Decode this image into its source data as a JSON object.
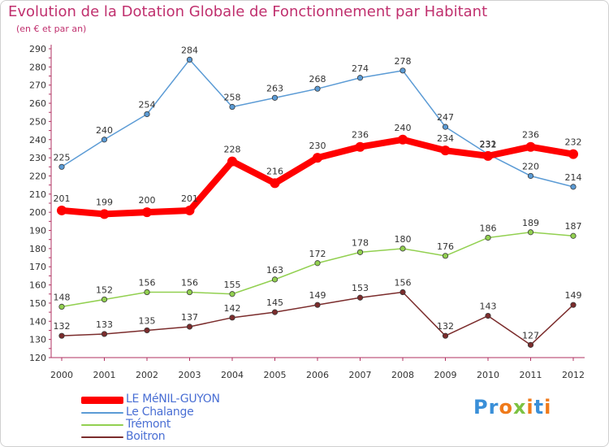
{
  "header": {
    "title": "Evolution de la Dotation Globale de Fonctionnement par Habitant",
    "subtitle": "(en € et par an)"
  },
  "logo": {
    "text": "Proxiti"
  },
  "colors": {
    "title": "#c0306e",
    "axis": "#b03060",
    "legend_text": "#4a6fd4"
  },
  "chart_data": {
    "type": "line",
    "x": [
      "2000",
      "2001",
      "2002",
      "2003",
      "2004",
      "2005",
      "2006",
      "2007",
      "2008",
      "2009",
      "2010",
      "2011",
      "2012"
    ],
    "ylim": [
      120,
      290
    ],
    "yticks": [
      120,
      130,
      140,
      150,
      160,
      170,
      180,
      190,
      200,
      210,
      220,
      230,
      240,
      250,
      260,
      270,
      280,
      290
    ],
    "grid": false,
    "legend_position": "bottom-left",
    "series": [
      {
        "name": "LE MéNIL-GUYON",
        "color": "#ff0000",
        "width": 8,
        "values": [
          201,
          199,
          200,
          201,
          228,
          216,
          230,
          236,
          240,
          234,
          231,
          236,
          232
        ]
      },
      {
        "name": "Le Chalange",
        "color": "#5b9bd5",
        "width": 1.5,
        "values": [
          225,
          240,
          254,
          284,
          258,
          263,
          268,
          274,
          278,
          247,
          232,
          220,
          214
        ]
      },
      {
        "name": "Trémont",
        "color": "#92d050",
        "width": 1.5,
        "values": [
          148,
          152,
          156,
          156,
          155,
          163,
          172,
          178,
          180,
          176,
          186,
          189,
          187
        ]
      },
      {
        "name": "Boitron",
        "color": "#7b2c2c",
        "width": 1.5,
        "values": [
          132,
          133,
          135,
          137,
          142,
          145,
          149,
          153,
          156,
          132,
          143,
          127,
          149
        ]
      }
    ]
  }
}
